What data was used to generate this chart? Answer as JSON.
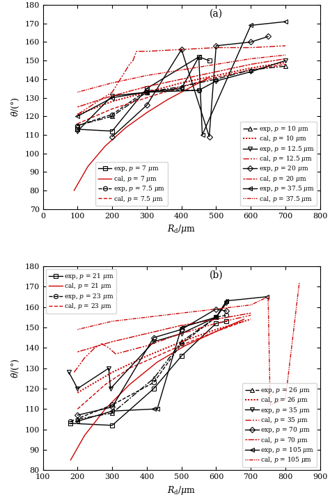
{
  "panel_a": {
    "xlim": [
      0,
      800
    ],
    "ylim": [
      70,
      180
    ],
    "xlabel": "$R_{\\rm d}/\\mu{\\rm m}$",
    "ylabel": "$\\theta$/(°)",
    "label": "(a)",
    "series": [
      {
        "name": "exp_p7",
        "label": "exp, $p$ = 7 $\\mu$m",
        "x": [
          100,
          200,
          300,
          450,
          480
        ],
        "y": [
          113,
          112,
          135,
          152,
          150
        ],
        "color": "black",
        "ls": "-",
        "marker": "s",
        "ms": 4.5,
        "mfc": "none",
        "lw": 1.0
      },
      {
        "name": "cal_p7",
        "label": "cal, $p$ = 7 $\\mu$m",
        "x": [
          90,
          130,
          180,
          240,
          300,
          360,
          420,
          480
        ],
        "y": [
          80,
          93,
          104,
          114,
          122,
          129,
          135,
          141
        ],
        "color": "#cc0000",
        "ls": "-",
        "marker": null,
        "lw": 1.0
      },
      {
        "name": "exp_p7p5",
        "label": "exp, $p$ = 7.5 $\\mu$m",
        "x": [
          100,
          200,
          300,
          450
        ],
        "y": [
          115,
          121,
          134,
          134
        ],
        "color": "black",
        "ls": "--",
        "marker": "o",
        "ms": 4.5,
        "mfc": "none",
        "lw": 1.0
      },
      {
        "name": "cal_p7p5",
        "label": "cal, $p$ = 7.5 $\\mu$m",
        "x": [
          100,
          200,
          300,
          400,
          500,
          600,
          700
        ],
        "y": [
          116,
          124,
          130,
          136,
          141,
          145,
          148
        ],
        "color": "#cc0000",
        "ls": "--",
        "marker": null,
        "lw": 1.0
      },
      {
        "name": "exp_p10",
        "label": "exp, $p$ = 10 $\\mu$m",
        "x": [
          100,
          200,
          300,
          400,
          500,
          600,
          700
        ],
        "y": [
          115,
          120,
          133,
          136,
          140,
          145,
          147
        ],
        "color": "black",
        "ls": "dotdash",
        "marker": "^",
        "ms": 4.5,
        "mfc": "none",
        "lw": 1.0
      },
      {
        "name": "cal_p10",
        "label": "cal, $p$ = 10 $\\mu$m",
        "x": [
          100,
          200,
          300,
          400,
          500,
          600,
          700
        ],
        "y": [
          121,
          128,
          133,
          138,
          142,
          146,
          149
        ],
        "color": "#cc0000",
        "ls": "densedot",
        "marker": null,
        "lw": 1.5
      },
      {
        "name": "exp_p12p5",
        "label": "exp, $p$ = 12.5 $\\mu$m",
        "x": [
          100,
          200,
          300,
          450,
          500,
          600,
          700
        ],
        "y": [
          112,
          131,
          133,
          134,
          139,
          144,
          150
        ],
        "color": "black",
        "ls": "-",
        "marker": "v",
        "ms": 4.5,
        "mfc": "none",
        "lw": 1.0
      },
      {
        "name": "cal_p12p5",
        "label": "cal, $p$ = 12.5 $\\mu$m",
        "x": [
          100,
          200,
          250,
          260,
          270,
          300,
          400,
          500,
          600,
          700
        ],
        "y": [
          121,
          133,
          148,
          150,
          155,
          155,
          156,
          157,
          157,
          158
        ],
        "color": "#cc0000",
        "ls": "dashdotdot",
        "marker": null,
        "lw": 1.0
      },
      {
        "name": "exp_p20",
        "label": "exp, $p$ = 20 $\\mu$m",
        "x": [
          200,
          300,
          400,
          480,
          500,
          600,
          650
        ],
        "y": [
          109,
          126,
          156,
          109,
          158,
          160,
          163
        ],
        "color": "black",
        "ls": "-",
        "marker": "D",
        "ms": 4.5,
        "mfc": "none",
        "lw": 1.0
      },
      {
        "name": "cal_p20",
        "label": "cal, $p$ = 20 $\\mu$m",
        "x": [
          100,
          200,
          300,
          400,
          500,
          600,
          700
        ],
        "y": [
          125,
          131,
          136,
          140,
          144,
          148,
          151
        ],
        "color": "#cc0000",
        "ls": "dotdashdot",
        "marker": null,
        "lw": 1.0
      },
      {
        "name": "exp_p37p5",
        "label": "exp, $p$ = 37.5 $\\mu$m",
        "x": [
          100,
          200,
          300,
          400,
          450,
          460,
          600,
          700
        ],
        "y": [
          120,
          130,
          133,
          135,
          152,
          110,
          169,
          171
        ],
        "color": "black",
        "ls": "-",
        "marker": "<",
        "ms": 4.5,
        "mfc": "none",
        "lw": 1.0
      },
      {
        "name": "cal_p37p5",
        "label": "cal, $p$ = 37.5 $\\mu$m",
        "x": [
          100,
          200,
          300,
          400,
          500,
          600,
          700
        ],
        "y": [
          133,
          138,
          142,
          145,
          148,
          151,
          153
        ],
        "color": "#cc0000",
        "ls": "densedotdot",
        "marker": null,
        "lw": 1.0
      }
    ]
  },
  "panel_b": {
    "xlim": [
      100,
      900
    ],
    "ylim": [
      80,
      180
    ],
    "xlabel": "$R_{\\rm d}/\\mu{\\rm m}$",
    "ylabel": "$\\theta$/(°)",
    "label": "(b)",
    "series": [
      {
        "name": "exp_p21",
        "label": "exp, $p$ = 21 $\\mu$m",
        "x": [
          180,
          300,
          420,
          500,
          600,
          630
        ],
        "y": [
          103,
          102,
          120,
          136,
          152,
          153
        ],
        "color": "black",
        "ls": "-",
        "marker": "s",
        "ms": 4.5,
        "mfc": "none",
        "lw": 1.0
      },
      {
        "name": "cal_p21",
        "label": "cal, $p$ = 21 $\\mu$m",
        "x": [
          180,
          220,
          280,
          350,
          430,
          510,
          600,
          680
        ],
        "y": [
          85,
          97,
          110,
          122,
          133,
          141,
          148,
          154
        ],
        "color": "#cc0000",
        "ls": "-",
        "marker": null,
        "lw": 1.0
      },
      {
        "name": "exp_p23",
        "label": "exp, $p$ = 23 $\\mu$m",
        "x": [
          180,
          300,
          420,
          500,
          600,
          630
        ],
        "y": [
          104,
          112,
          123,
          142,
          155,
          156
        ],
        "color": "black",
        "ls": "--",
        "marker": "o",
        "ms": 4.5,
        "mfc": "none",
        "lw": 1.0
      },
      {
        "name": "cal_p23",
        "label": "cal, $p$ = 23 $\\mu$m",
        "x": [
          200,
          280,
          350,
          430,
          510,
          600,
          680
        ],
        "y": [
          110,
          122,
          130,
          136,
          142,
          148,
          153
        ],
        "color": "#cc0000",
        "ls": "--",
        "marker": null,
        "lw": 1.0
      },
      {
        "name": "exp_p26",
        "label": "exp, $p$ = 26 $\\mu$m",
        "x": [
          200,
          300,
          420,
          500,
          600,
          630
        ],
        "y": [
          105,
          108,
          125,
          143,
          155,
          163
        ],
        "color": "black",
        "ls": "dotdash",
        "marker": "^",
        "ms": 4.5,
        "mfc": "none",
        "lw": 1.0
      },
      {
        "name": "cal_p26",
        "label": "cal, $p$ = 26 $\\mu$m",
        "x": [
          200,
          300,
          400,
          500,
          600,
          700
        ],
        "y": [
          118,
          128,
          136,
          143,
          149,
          154
        ],
        "color": "#cc0000",
        "ls": "densedot",
        "marker": null,
        "lw": 1.5
      },
      {
        "name": "exp_p35",
        "label": "exp, $p$ = 35 $\\mu$m",
        "x": [
          175,
          200,
          290,
          295,
          420,
          500,
          600,
          630
        ],
        "y": [
          128,
          120,
          130,
          120,
          143,
          147,
          155,
          162
        ],
        "color": "black",
        "ls": "-",
        "marker": "v",
        "ms": 4.5,
        "mfc": "none",
        "lw": 1.0
      },
      {
        "name": "cal_p35",
        "label": "cal, $p$ = 35 $\\mu$m",
        "x": [
          190,
          220,
          250,
          270,
          290,
          310,
          400,
          500,
          600,
          700
        ],
        "y": [
          128,
          135,
          140,
          142,
          140,
          137,
          141,
          147,
          152,
          156
        ],
        "color": "#cc0000",
        "ls": "dashdotdot",
        "marker": null,
        "lw": 1.0
      },
      {
        "name": "exp_p70",
        "label": "exp, $p$ = 70 $\\mu$m",
        "x": [
          200,
          300,
          420,
          500,
          600,
          630
        ],
        "y": [
          107,
          111,
          145,
          149,
          159,
          158
        ],
        "color": "black",
        "ls": "-",
        "marker": "D",
        "ms": 4.5,
        "mfc": "none",
        "lw": 1.0
      },
      {
        "name": "cal_p70",
        "label": "cal, $p$ = 70 $\\mu$m",
        "x": [
          200,
          300,
          400,
          500,
          600,
          700
        ],
        "y": [
          138,
          143,
          147,
          151,
          154,
          157
        ],
        "color": "#cc0000",
        "ls": "dotdashdot",
        "marker": null,
        "lw": 1.0
      },
      {
        "name": "exp_p105",
        "label": "exp, $p$ = 105 $\\mu$m",
        "x": [
          200,
          300,
          420,
          430,
          500,
          600,
          630,
          745
        ],
        "y": [
          104,
          109,
          110,
          110,
          150,
          155,
          163,
          165
        ],
        "color": "black",
        "ls": "-",
        "marker": "<",
        "ms": 4.5,
        "mfc": "none",
        "lw": 1.0
      },
      {
        "name": "cal_p105",
        "label": "cal, $p$ = 105 $\\mu$m",
        "x": [
          200,
          300,
          400,
          500,
          600,
          700,
          750,
          756,
          800,
          840
        ],
        "y": [
          149,
          153,
          155,
          157,
          159,
          161,
          165,
          112,
          115,
          172
        ],
        "color": "#cc0000",
        "ls": "densedotdot",
        "marker": null,
        "lw": 1.0
      }
    ]
  },
  "legend_a_left": [
    [
      "exp_p7",
      "exp, $p$ = 7 $\\mu$m"
    ],
    [
      "cal_p7",
      "cal, $p$ = 7 $\\mu$m"
    ],
    [
      "exp_p7p5",
      "exp, $p$ = 7.5 $\\mu$m"
    ],
    [
      "cal_p7p5",
      "cal, $p$ = 7.5 $\\mu$m"
    ]
  ],
  "legend_a_right": [
    [
      "exp_p10",
      "exp, $p$ = 10 $\\mu$m"
    ],
    [
      "cal_p10",
      "cal, $p$ = 10 $\\mu$m"
    ],
    [
      "exp_p12p5",
      "exp, $p$ = 12.5 $\\mu$m"
    ],
    [
      "cal_p12p5",
      "cal, $p$ = 12.5 $\\mu$m"
    ],
    [
      "exp_p20",
      "exp, $p$ = 20 $\\mu$m"
    ],
    [
      "cal_p20",
      "cal, $p$ = 20 $\\mu$m"
    ],
    [
      "exp_p37p5",
      "exp, $p$ = 37.5 $\\mu$m"
    ],
    [
      "cal_p37p5",
      "cal, $p$ = 37.5 $\\mu$m"
    ]
  ],
  "legend_b_left": [
    [
      "exp_p21",
      "exp, $p$ = 21 $\\mu$m"
    ],
    [
      "cal_p21",
      "cal, $p$ = 21 $\\mu$m"
    ],
    [
      "exp_p23",
      "exp, $p$ = 23 $\\mu$m"
    ],
    [
      "cal_p23",
      "cal, $p$ = 23 $\\mu$m"
    ]
  ],
  "legend_b_right": [
    [
      "exp_p26",
      "exp, $p$ = 26 $\\mu$m"
    ],
    [
      "cal_p26",
      "cal, $p$ = 26 $\\mu$m"
    ],
    [
      "exp_p35",
      "exp, $p$ = 35 $\\mu$m"
    ],
    [
      "cal_p35",
      "cal, $p$ = 35 $\\mu$m"
    ],
    [
      "exp_p70",
      "exp, $p$ = 70 $\\mu$m"
    ],
    [
      "cal_p70",
      "cal, $p$ = 70 $\\mu$m"
    ],
    [
      "exp_p105",
      "exp, $p$ = 105 $\\mu$m"
    ],
    [
      "cal_p105",
      "cal, $p$ = 105 $\\mu$m"
    ]
  ]
}
